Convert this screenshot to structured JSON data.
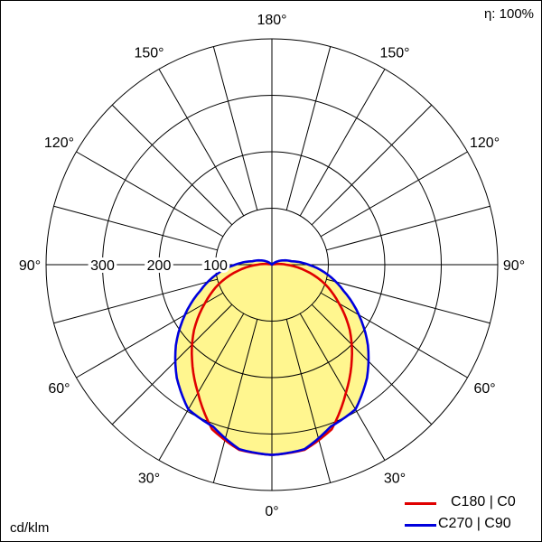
{
  "chart_data": {
    "type": "polar",
    "title": "",
    "efficiency_label": "η: 100%",
    "unit_label": "cd/klm",
    "radial_ticks": [
      100,
      200,
      300
    ],
    "radial_max": 400,
    "angle_labels": [
      "180°",
      "150°",
      "150°",
      "120°",
      "120°",
      "90°",
      "90°",
      "60°",
      "60°",
      "30°",
      "30°",
      "0°"
    ],
    "gamma": [
      0,
      10,
      20,
      30,
      40,
      50,
      60,
      70,
      80,
      90,
      100,
      110,
      120,
      130,
      140,
      180
    ],
    "series": [
      {
        "name": "C180 | C0",
        "color": "#e00000",
        "values": [
          337,
          333,
          310,
          262,
          220,
          180,
          137,
          100,
          60,
          25,
          5,
          0,
          0,
          0,
          0,
          0
        ]
      },
      {
        "name": "C270 | C90",
        "color": "#0000dd",
        "values": [
          337,
          332,
          305,
          296,
          262,
          222,
          178,
          135,
          100,
          65,
          35,
          22,
          12,
          4,
          0,
          0
        ]
      }
    ],
    "fill_color": "#fff68f"
  }
}
